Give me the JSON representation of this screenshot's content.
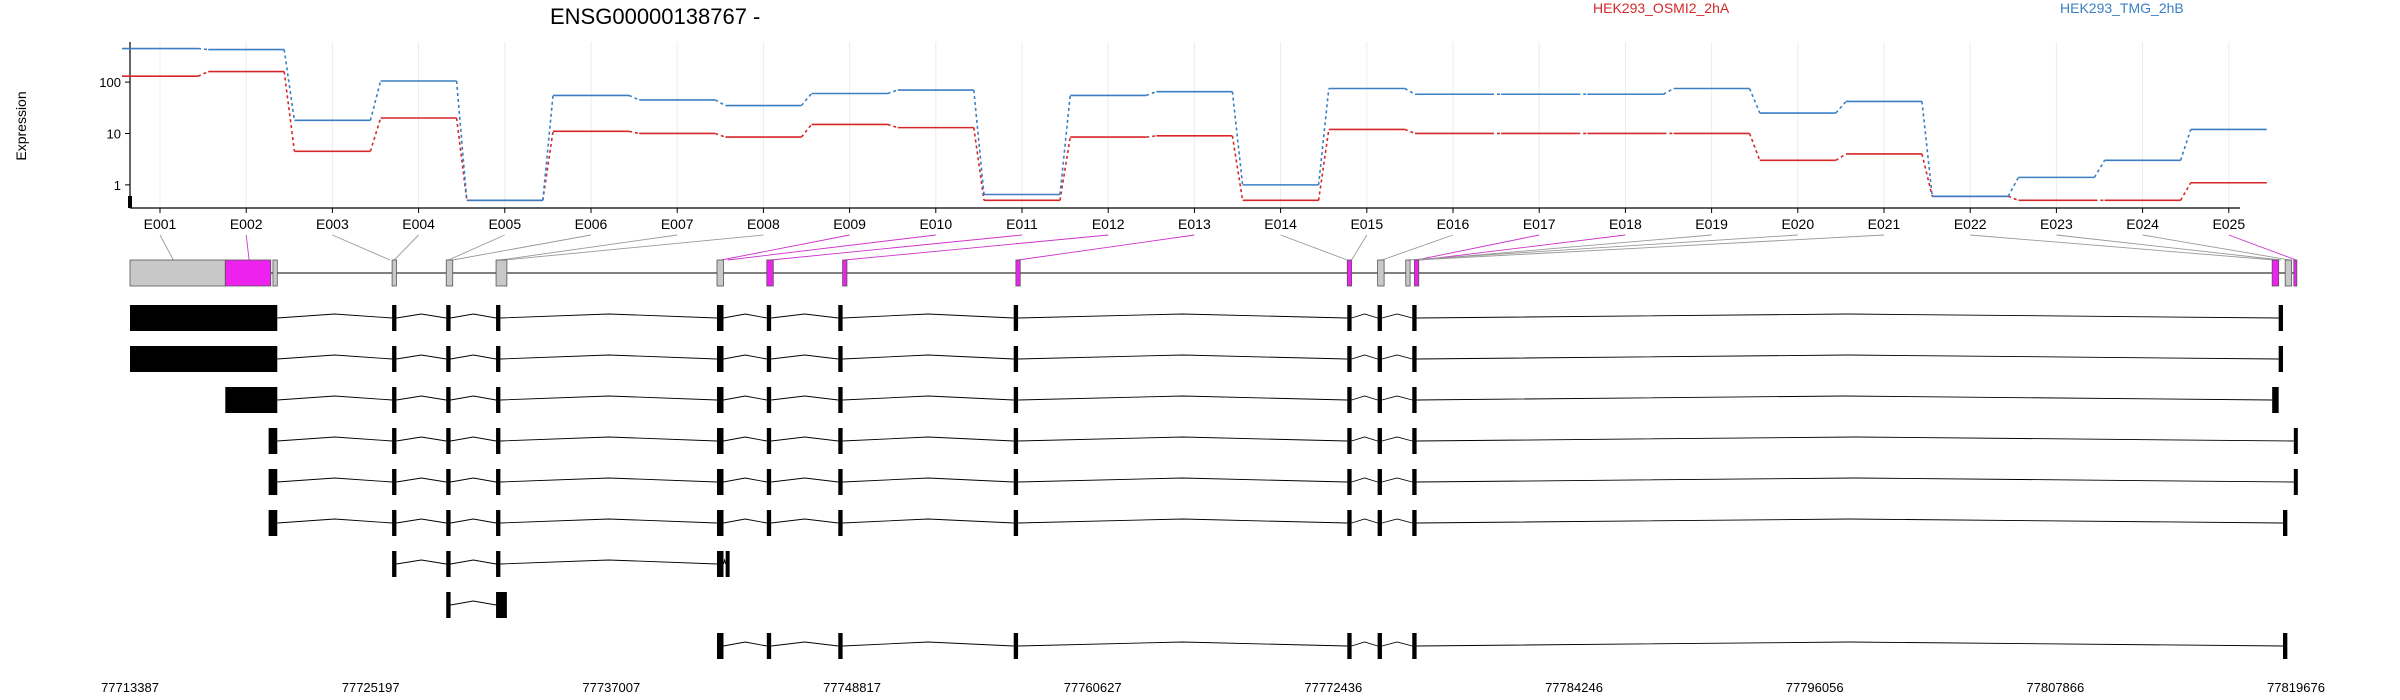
{
  "title": "ENSG00000138767 -",
  "chart_data": {
    "type": "line",
    "title": "ENSG00000138767 -",
    "ylabel": "Expression",
    "yscale": "log",
    "yticks": [
      "1",
      "10",
      "100"
    ],
    "grid": "vertical",
    "legend_position": "top-right",
    "categories": [
      "E001",
      "E002",
      "E003",
      "E004",
      "E005",
      "E006",
      "E007",
      "E008",
      "E009",
      "E010",
      "E011",
      "E012",
      "E013",
      "E014",
      "E015",
      "E016",
      "E017",
      "E018",
      "E019",
      "E020",
      "E021",
      "E022",
      "E023",
      "E024",
      "E025"
    ],
    "series": [
      {
        "name": "HEK293_OSMI2_2hA",
        "color": "#d62728",
        "values": [
          130,
          160,
          4.5,
          20,
          0.5,
          11,
          10,
          8.5,
          15,
          13,
          0.5,
          8.5,
          9,
          0.5,
          12,
          10,
          10,
          10,
          10,
          3,
          4,
          0.6,
          0.5,
          0.5,
          1.1
        ]
      },
      {
        "name": "HEK293_TMG_2hB",
        "color": "#3a7fc4",
        "values": [
          450,
          430,
          18,
          105,
          0.5,
          55,
          45,
          35,
          60,
          70,
          0.65,
          55,
          65,
          1,
          75,
          58,
          58,
          58,
          75,
          25,
          42,
          0.6,
          1.4,
          3,
          12
        ]
      }
    ]
  },
  "gene_model": {
    "coordinates": [
      "77713387",
      "77725197",
      "77737007",
      "77748817",
      "77760627",
      "77772436",
      "77784246",
      "77796056",
      "77807866",
      "77819676"
    ],
    "exon_span_fraction": [
      [
        0.0,
        0.044
      ],
      [
        0.044,
        0.065
      ],
      [
        0.066,
        0.068
      ],
      [
        0.121,
        0.123
      ],
      [
        0.146,
        0.149
      ],
      [
        0.169,
        0.174
      ],
      [
        0.271,
        0.274
      ],
      [
        0.294,
        0.297
      ],
      [
        0.329,
        0.331
      ],
      [
        0.409,
        0.411
      ],
      [
        0.562,
        0.564
      ],
      [
        0.576,
        0.579
      ],
      [
        0.589,
        0.591
      ],
      [
        0.593,
        0.595
      ],
      [
        0.989,
        0.992
      ],
      [
        0.995,
        0.998
      ],
      [
        0.999,
        1.0
      ]
    ],
    "highlighted_exons": [
      "E002",
      "E009",
      "E010",
      "E011",
      "E012",
      "E013",
      "E017",
      "E018",
      "E025"
    ],
    "transcripts": [
      [
        [
          0.0,
          0.068
        ],
        [
          0.121,
          0.123
        ],
        [
          0.146,
          0.148
        ],
        [
          0.169,
          0.171
        ],
        [
          0.271,
          0.274
        ],
        [
          0.294,
          0.296
        ],
        [
          0.327,
          0.329
        ],
        [
          0.408,
          0.41
        ],
        [
          0.562,
          0.564
        ],
        [
          0.576,
          0.578
        ],
        [
          0.592,
          0.594
        ],
        [
          0.992,
          0.994
        ]
      ],
      [
        [
          0.0,
          0.068
        ],
        [
          0.121,
          0.123
        ],
        [
          0.146,
          0.148
        ],
        [
          0.169,
          0.171
        ],
        [
          0.271,
          0.274
        ],
        [
          0.294,
          0.296
        ],
        [
          0.327,
          0.329
        ],
        [
          0.408,
          0.41
        ],
        [
          0.562,
          0.564
        ],
        [
          0.576,
          0.578
        ],
        [
          0.592,
          0.594
        ],
        [
          0.992,
          0.994
        ]
      ],
      [
        [
          0.044,
          0.068
        ],
        [
          0.121,
          0.123
        ],
        [
          0.146,
          0.148
        ],
        [
          0.169,
          0.171
        ],
        [
          0.271,
          0.274
        ],
        [
          0.294,
          0.296
        ],
        [
          0.327,
          0.329
        ],
        [
          0.408,
          0.41
        ],
        [
          0.562,
          0.564
        ],
        [
          0.576,
          0.578
        ],
        [
          0.592,
          0.594
        ],
        [
          0.989,
          0.992
        ]
      ],
      [
        [
          0.064,
          0.068
        ],
        [
          0.121,
          0.123
        ],
        [
          0.146,
          0.148
        ],
        [
          0.169,
          0.171
        ],
        [
          0.271,
          0.274
        ],
        [
          0.294,
          0.296
        ],
        [
          0.327,
          0.329
        ],
        [
          0.408,
          0.41
        ],
        [
          0.562,
          0.564
        ],
        [
          0.576,
          0.578
        ],
        [
          0.592,
          0.594
        ],
        [
          0.999,
          1.0
        ]
      ],
      [
        [
          0.064,
          0.068
        ],
        [
          0.121,
          0.123
        ],
        [
          0.146,
          0.148
        ],
        [
          0.169,
          0.171
        ],
        [
          0.271,
          0.274
        ],
        [
          0.294,
          0.296
        ],
        [
          0.327,
          0.329
        ],
        [
          0.408,
          0.41
        ],
        [
          0.562,
          0.564
        ],
        [
          0.576,
          0.578
        ],
        [
          0.592,
          0.594
        ],
        [
          0.999,
          1.0
        ]
      ],
      [
        [
          0.064,
          0.068
        ],
        [
          0.121,
          0.123
        ],
        [
          0.146,
          0.148
        ],
        [
          0.169,
          0.171
        ],
        [
          0.271,
          0.274
        ],
        [
          0.294,
          0.296
        ],
        [
          0.327,
          0.329
        ],
        [
          0.408,
          0.41
        ],
        [
          0.562,
          0.564
        ],
        [
          0.576,
          0.578
        ],
        [
          0.592,
          0.594
        ],
        [
          0.994,
          0.996
        ]
      ],
      [
        [
          0.121,
          0.123
        ],
        [
          0.146,
          0.148
        ],
        [
          0.169,
          0.171
        ],
        [
          0.271,
          0.274
        ],
        [
          0.275,
          0.276
        ]
      ],
      [
        [
          0.146,
          0.148
        ],
        [
          0.169,
          0.174
        ]
      ],
      [
        [
          0.271,
          0.274
        ],
        [
          0.294,
          0.296
        ],
        [
          0.327,
          0.329
        ],
        [
          0.408,
          0.41
        ],
        [
          0.562,
          0.564
        ],
        [
          0.576,
          0.578
        ],
        [
          0.592,
          0.594
        ],
        [
          0.994,
          0.996
        ]
      ]
    ],
    "colors": {
      "exon": "#000000",
      "highlight": "#ee22ee",
      "summary_fill": "#c8c8c8",
      "connector_gray": "#999999",
      "connector_magenta": "#cc33cc"
    }
  }
}
